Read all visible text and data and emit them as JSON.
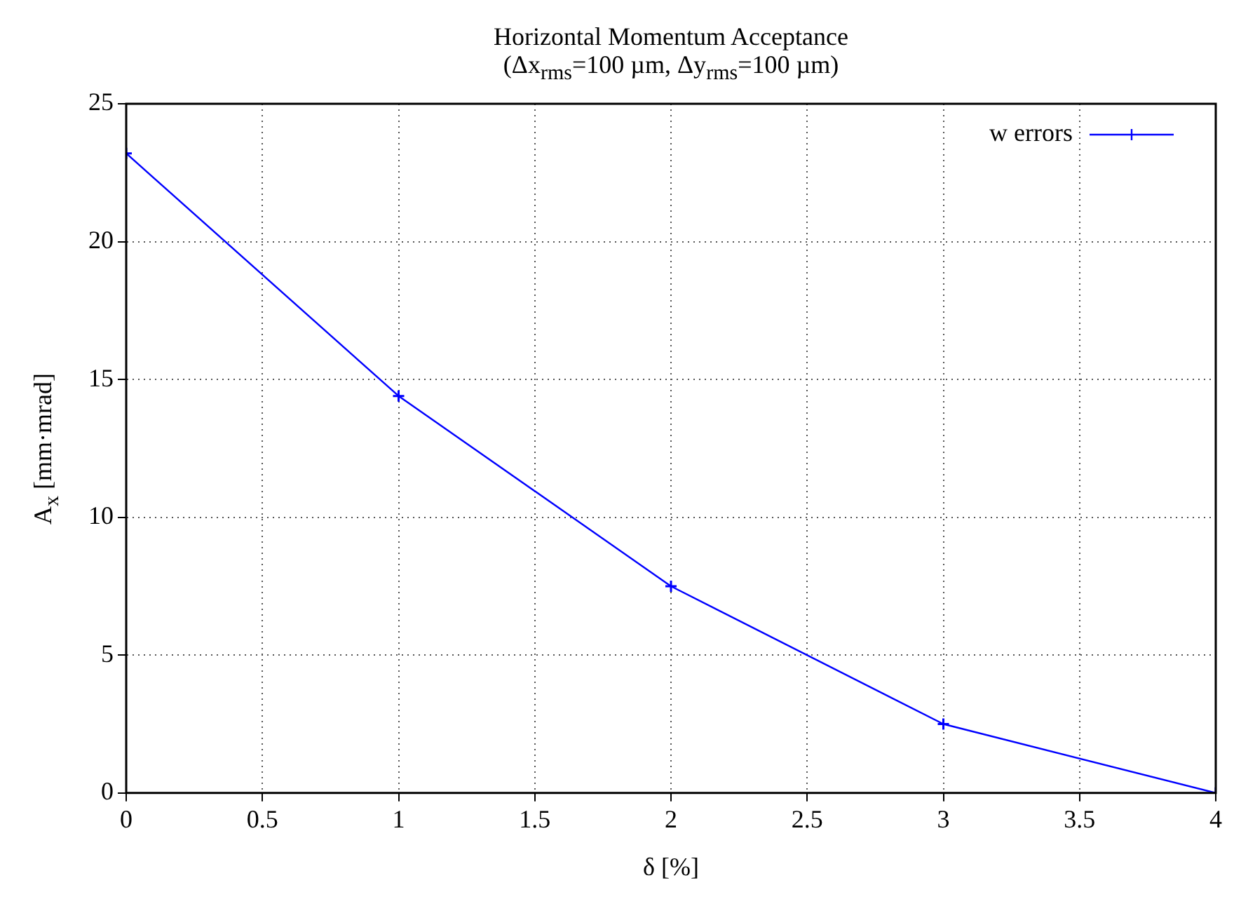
{
  "chart_data": {
    "type": "line",
    "title": "Horizontal Momentum Acceptance",
    "subtitle": "(Δx$_{rms}$=100 µm, Δy$_{rms}$=100 µm)",
    "xlabel": "δ [%]",
    "ylabel": "A$_{x}$ [mm·mrad]",
    "x": [
      0,
      1,
      2,
      3,
      4
    ],
    "series": [
      {
        "name": "w errors",
        "color": "#0000ff",
        "values": [
          23.2,
          14.4,
          7.5,
          2.5,
          0
        ]
      }
    ],
    "xlim": [
      0,
      4
    ],
    "xticks": [
      0,
      0.5,
      1,
      1.5,
      2,
      2.5,
      3,
      3.5,
      4
    ],
    "ylim": [
      0,
      25
    ],
    "yticks": [
      0,
      5,
      10,
      15,
      20,
      25
    ],
    "grid": true,
    "legend": "top right",
    "marker": "cross",
    "line_style": "solid"
  }
}
